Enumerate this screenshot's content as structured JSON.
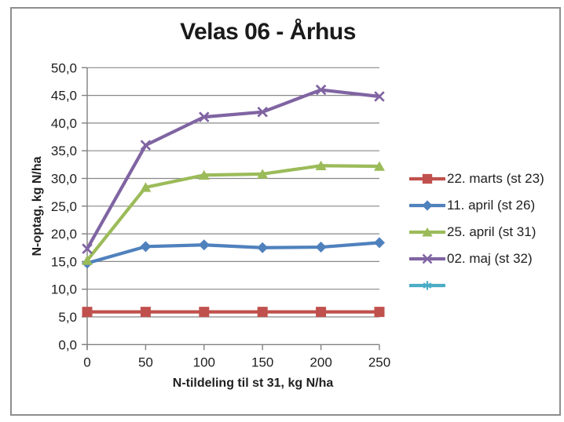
{
  "frame": {
    "border_color": "#8E8E8E",
    "background": "#FFFFFF"
  },
  "chart_data": {
    "type": "line",
    "title": "Velas 06 - Århus",
    "xlabel": "N-tildeling til st 31, kg N/ha",
    "ylabel": "N-optag, kg N/ha",
    "x": [
      0,
      50,
      100,
      150,
      200,
      250
    ],
    "xlim": [
      0,
      250
    ],
    "ylim": [
      0,
      50
    ],
    "ytick_step": 5,
    "xtick_labels": [
      "0",
      "50",
      "100",
      "150",
      "200",
      "250"
    ],
    "ytick_labels": [
      "0,0",
      "5,0",
      "10,0",
      "15,0",
      "20,0",
      "25,0",
      "30,0",
      "35,0",
      "40,0",
      "45,0",
      "50,0"
    ],
    "grid": true,
    "legend_position": "right",
    "axis_color": "#808080",
    "gridline_color": "#888888",
    "series": [
      {
        "name": "22. marts (st 23)",
        "color": "#C0504D",
        "marker": "square",
        "values": [
          5.9,
          5.9,
          5.9,
          5.9,
          5.9,
          5.9
        ]
      },
      {
        "name": "11. april (st 26)",
        "color": "#4F81BD",
        "marker": "diamond",
        "values": [
          14.7,
          17.7,
          18.0,
          17.5,
          17.6,
          18.4
        ]
      },
      {
        "name": "25. april (st 31)",
        "color": "#9BBB59",
        "marker": "triangle",
        "values": [
          15.2,
          28.4,
          30.6,
          30.8,
          32.3,
          32.2
        ]
      },
      {
        "name": "02. maj (st 32)",
        "color": "#8064A2",
        "marker": "x",
        "values": [
          17.3,
          36.0,
          41.1,
          42.0,
          46.0,
          44.8
        ]
      },
      {
        "name": "",
        "color": "#4BACC6",
        "marker": "asterisk",
        "values": []
      }
    ]
  }
}
